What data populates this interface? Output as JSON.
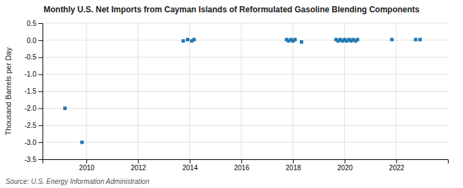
{
  "chart_data": {
    "type": "scatter",
    "title": "Monthly U.S. Net Imports from Cayman Islands of Reformulated Gasoline Blending Components",
    "ylabel": "Thousand Barrels per Day",
    "source": "Source: U.S. Energy Information Administration",
    "marker": "square",
    "grid": true,
    "xlim": [
      2008.3,
      2024.0
    ],
    "xticks": [
      2010,
      2012,
      2014,
      2016,
      2018,
      2020,
      2022
    ],
    "ylim": [
      -3.5,
      0.5
    ],
    "yticks": [
      0.5,
      {
        "value": 0.0,
        "label": "0.0"
      },
      -0.5,
      {
        "value": -1.0,
        "label": "-1.0"
      },
      -1.5,
      {
        "value": -2.0,
        "label": "-2.0"
      },
      -2.5,
      {
        "value": -3.0,
        "label": "-3.0"
      },
      -3.5
    ],
    "x": [
      2009.17,
      2009.83,
      2013.75,
      2013.92,
      2014.08,
      2014.17,
      2017.75,
      2017.83,
      2017.92,
      2018.0,
      2018.08,
      2018.33,
      2019.67,
      2019.75,
      2019.83,
      2019.92,
      2020.0,
      2020.08,
      2020.17,
      2020.25,
      2020.33,
      2020.42,
      2020.5,
      2021.83,
      2022.75,
      2022.92
    ],
    "values": [
      -2.0,
      -3.0,
      -0.02,
      0.02,
      -0.02,
      0.02,
      0.02,
      -0.02,
      0.02,
      -0.02,
      0.02,
      -0.05,
      0.02,
      -0.02,
      0.02,
      -0.02,
      0.02,
      -0.02,
      0.02,
      -0.02,
      0.02,
      -0.02,
      0.02,
      0.02,
      0.02,
      0.02
    ]
  }
}
